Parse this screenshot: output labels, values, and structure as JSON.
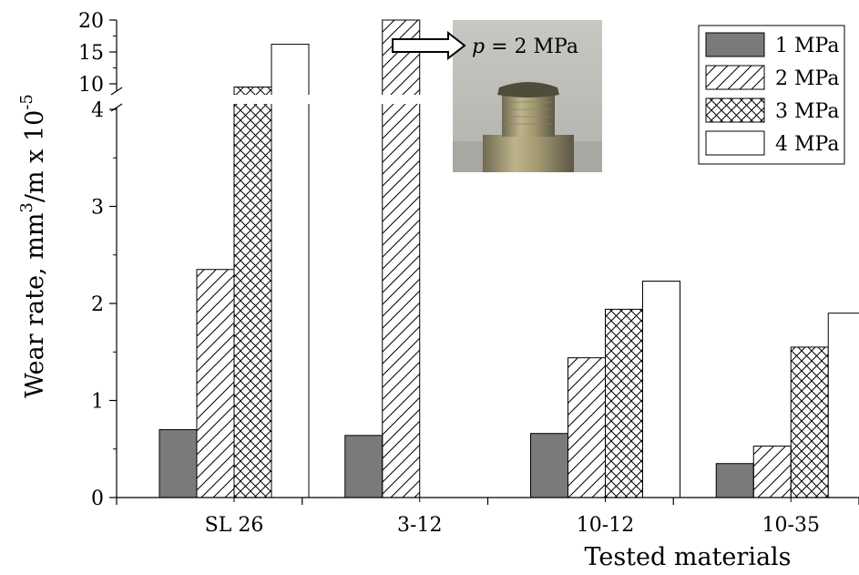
{
  "chart_data": {
    "type": "bar",
    "categories": [
      "SL 26",
      "3-12",
      "10-12",
      "10-35"
    ],
    "series": [
      {
        "name": "1 MPa",
        "values": [
          0.7,
          0.64,
          0.66,
          0.35
        ],
        "fill": "#7a7a7a",
        "pattern": "solid"
      },
      {
        "name": "2 MPa",
        "values": [
          2.35,
          20,
          1.44,
          0.53
        ],
        "fill": "#ffffff",
        "pattern": "diagonal-hatch"
      },
      {
        "name": "3 MPa",
        "values": [
          9.5,
          null,
          1.94,
          1.55
        ],
        "fill": "#ffffff",
        "pattern": "cross-hatch"
      },
      {
        "name": "4 MPa",
        "values": [
          16.2,
          null,
          2.23,
          1.9
        ],
        "fill": "#ffffff",
        "pattern": "none"
      }
    ],
    "xlabel": "Tested materials",
    "ylabel_prefix": "Wear rate, mm",
    "ylabel_sup1": "3",
    "ylabel_mid": "/m x 10",
    "ylabel_sup2": "-5",
    "y_axis": {
      "broken": true,
      "lower_segment": {
        "range": [
          0,
          4
        ],
        "ticks": [
          "0",
          "1",
          "2",
          "3",
          "4"
        ]
      },
      "upper_segment": {
        "range": [
          8,
          20
        ],
        "ticks": [
          "10",
          "15",
          "20"
        ]
      }
    },
    "legend_position": "top-right",
    "annotation": {
      "label_italic": "p",
      "label_rest": " = 2 MPa",
      "photo": "worn specimen pin (inset photograph)"
    }
  }
}
